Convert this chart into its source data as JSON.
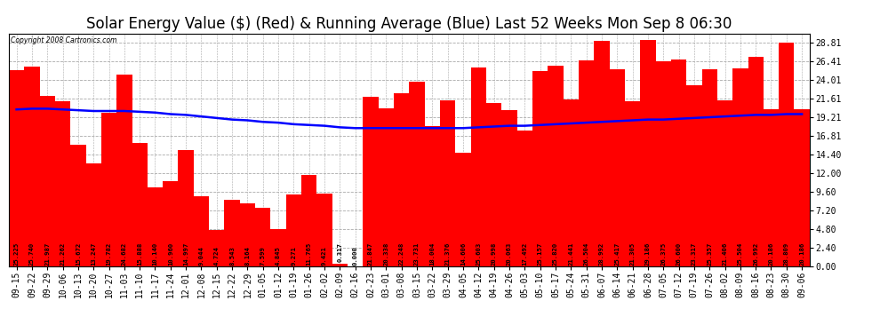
{
  "title": "Solar Energy Value ($) (Red) & Running Average (Blue) Last 52 Weeks Mon Sep 8 06:30",
  "copyright": "Copyright 2008 Cartronics.com",
  "categories": [
    "09-15",
    "09-22",
    "09-29",
    "10-06",
    "10-13",
    "10-20",
    "10-27",
    "11-03",
    "11-10",
    "11-17",
    "11-24",
    "12-01",
    "12-08",
    "12-15",
    "12-22",
    "12-29",
    "01-05",
    "01-12",
    "01-19",
    "01-26",
    "02-02",
    "02-09",
    "02-16",
    "02-23",
    "03-01",
    "03-08",
    "03-15",
    "03-22",
    "03-29",
    "04-05",
    "04-12",
    "04-19",
    "04-26",
    "05-03",
    "05-10",
    "05-17",
    "05-24",
    "05-31",
    "06-07",
    "06-14",
    "06-21",
    "06-28",
    "07-05",
    "07-12",
    "07-19",
    "07-26",
    "08-02",
    "08-09",
    "08-16",
    "08-23",
    "08-30",
    "09-06"
  ],
  "bar_values": [
    25.225,
    25.74,
    21.987,
    21.262,
    15.672,
    13.247,
    19.782,
    24.682,
    15.888,
    10.14,
    10.96,
    14.997,
    9.044,
    4.724,
    8.543,
    8.164,
    7.599,
    4.845,
    9.271,
    11.765,
    9.421,
    0.317,
    0.0,
    21.847,
    20.338,
    22.248,
    23.731,
    18.004,
    21.376,
    14.606,
    25.603,
    20.998,
    20.063,
    17.492,
    25.157,
    25.82,
    21.441,
    26.504,
    28.992,
    25.417,
    21.305,
    29.186,
    26.375,
    26.6,
    23.317,
    25.357,
    21.406,
    25.504,
    26.992,
    20.186,
    28.809,
    20.186
  ],
  "running_avg": [
    20.2,
    20.3,
    20.3,
    20.2,
    20.1,
    20.0,
    20.0,
    20.0,
    19.9,
    19.8,
    19.6,
    19.5,
    19.3,
    19.1,
    18.9,
    18.8,
    18.6,
    18.5,
    18.3,
    18.2,
    18.1,
    17.9,
    17.8,
    17.8,
    17.8,
    17.8,
    17.8,
    17.8,
    17.8,
    17.8,
    17.9,
    18.0,
    18.1,
    18.1,
    18.2,
    18.3,
    18.4,
    18.5,
    18.6,
    18.7,
    18.8,
    18.9,
    18.9,
    19.0,
    19.1,
    19.2,
    19.3,
    19.4,
    19.5,
    19.5,
    19.6,
    19.6
  ],
  "bar_color": "#ff0000",
  "line_color": "#0000ff",
  "background_color": "#ffffff",
  "plot_background": "#ffffff",
  "grid_color": "#aaaaaa",
  "yticks": [
    0.0,
    2.4,
    4.8,
    7.2,
    9.6,
    12.0,
    14.4,
    16.81,
    19.21,
    21.61,
    24.01,
    26.41,
    28.81
  ],
  "ylim": [
    0.0,
    30.0
  ],
  "title_fontsize": 12,
  "tick_fontsize": 7,
  "bar_label_fontsize": 5.2,
  "line_width": 1.8,
  "fig_width": 9.9,
  "fig_height": 3.75
}
